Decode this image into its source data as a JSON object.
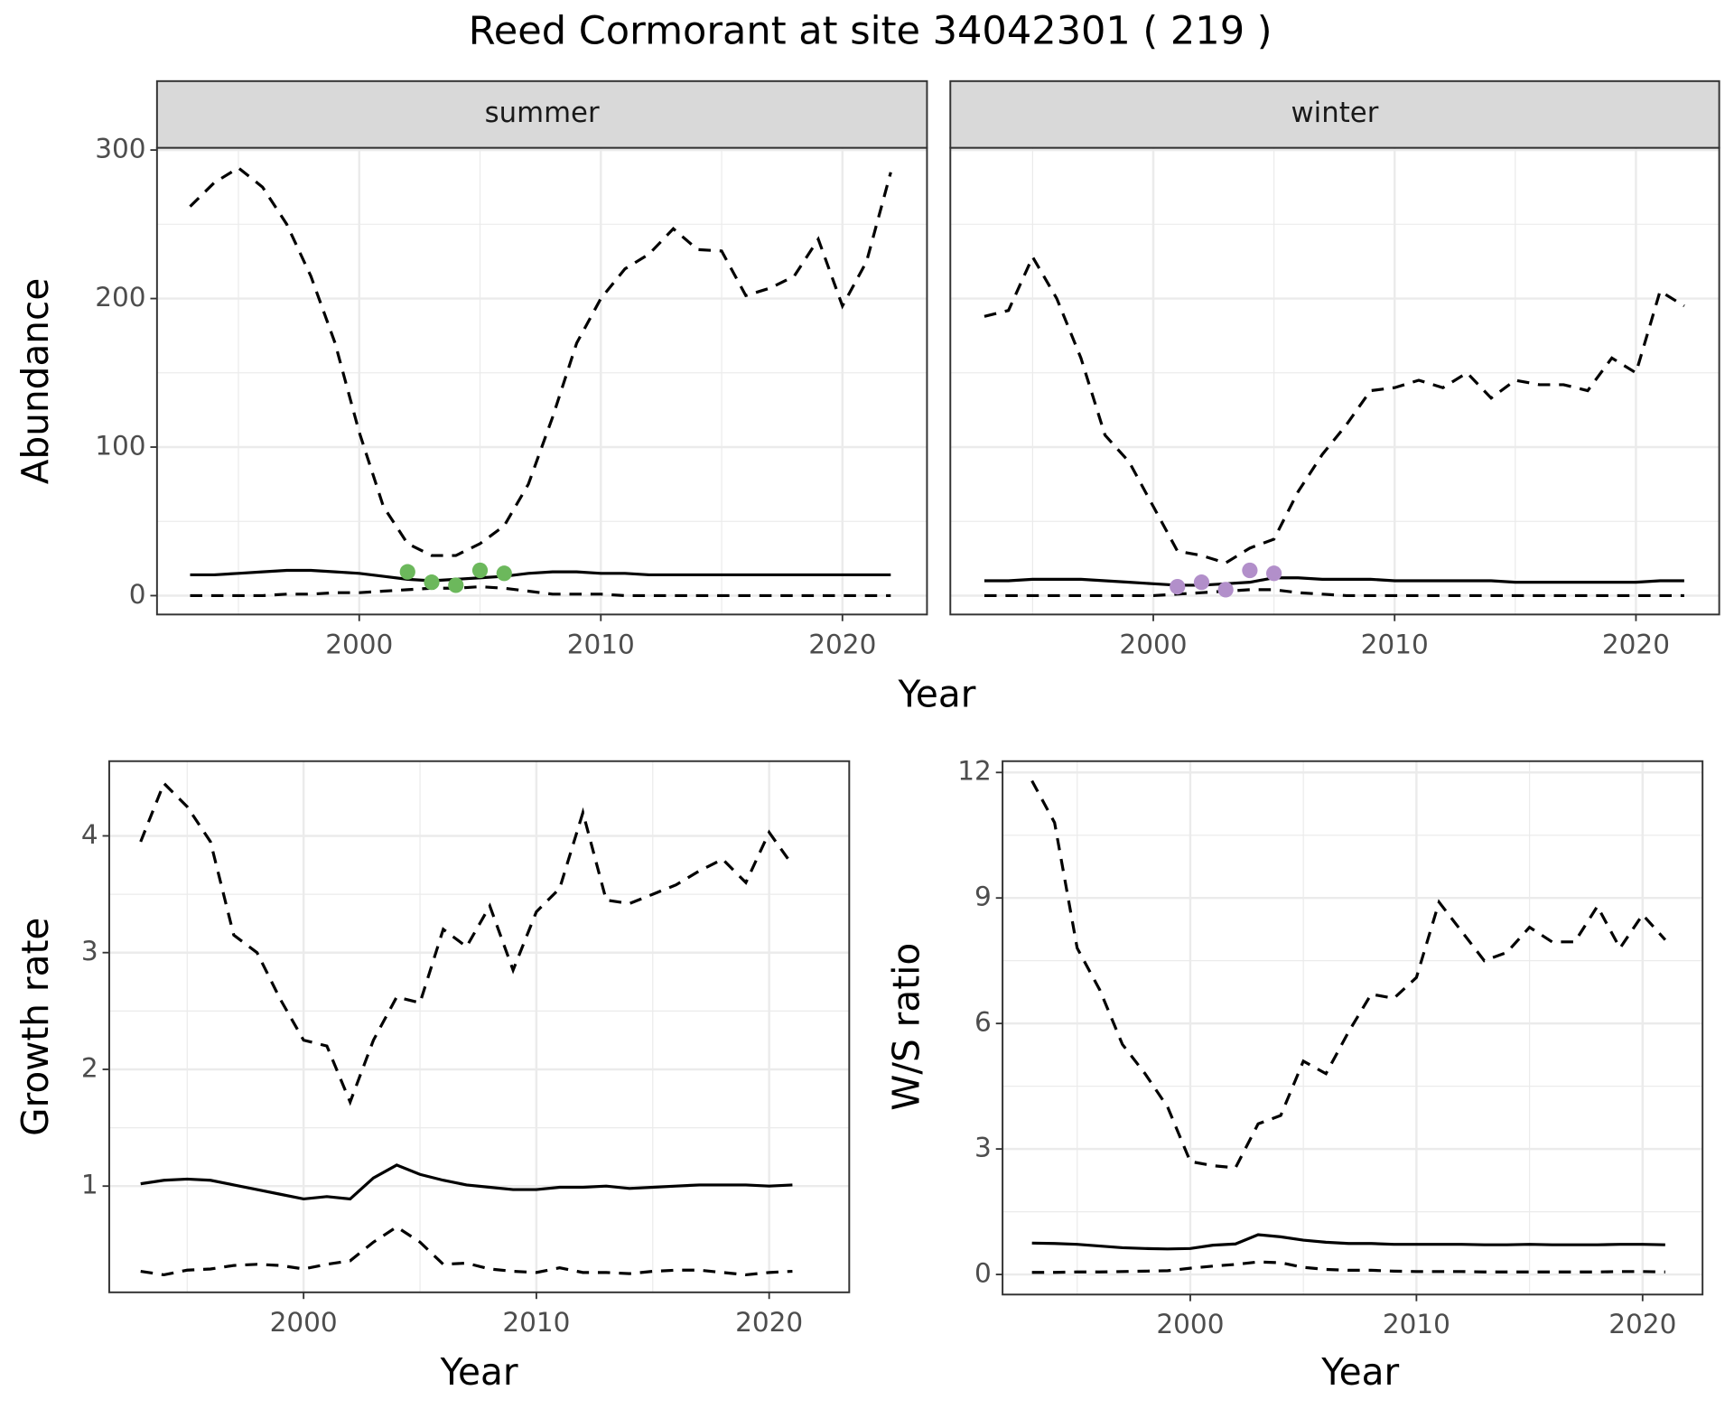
{
  "title": "Reed Cormorant at site 34042301 ( 219 )",
  "chart_data": [
    {
      "type": "line",
      "facet": "summer",
      "ylabel": "Abundance",
      "xlabel": "Year",
      "x": [
        1993,
        1994,
        1995,
        1996,
        1997,
        1998,
        1999,
        2000,
        2001,
        2002,
        2003,
        2004,
        2005,
        2006,
        2007,
        2008,
        2009,
        2010,
        2011,
        2012,
        2013,
        2014,
        2015,
        2016,
        2017,
        2018,
        2019,
        2020,
        2021,
        2022
      ],
      "series": [
        {
          "color": "#000000",
          "dash": true,
          "values": [
            262,
            278,
            288,
            275,
            250,
            215,
            170,
            110,
            60,
            35,
            27,
            27,
            35,
            47,
            75,
            120,
            170,
            200,
            220,
            230,
            247,
            233,
            232,
            202,
            207,
            215,
            240,
            195,
            225,
            285
          ]
        },
        {
          "color": "#000000",
          "dash": false,
          "values": [
            14,
            14,
            15,
            16,
            17,
            17,
            16,
            15,
            13,
            11,
            10,
            11,
            12,
            13,
            15,
            16,
            16,
            15,
            15,
            14,
            14,
            14,
            14,
            14,
            14,
            14,
            14,
            14,
            14,
            14
          ]
        },
        {
          "color": "#000000",
          "dash": true,
          "values": [
            0,
            0,
            0,
            0,
            1,
            1,
            2,
            2,
            3,
            4,
            5,
            5,
            6,
            5,
            3,
            1,
            1,
            1,
            0,
            0,
            0,
            0,
            0,
            0,
            0,
            0,
            0,
            0,
            0,
            0
          ]
        }
      ],
      "points": {
        "color": "#6cb85c",
        "x": [
          2002,
          2003,
          2004,
          2005,
          2006
        ],
        "values": [
          16,
          9,
          7,
          17,
          15
        ]
      },
      "xlim": [
        1991.63,
        2023.5
      ],
      "ylim": [
        -12.7,
        301.5
      ],
      "xticks": [
        2000,
        2010,
        2020
      ],
      "yticks": [
        0,
        100,
        200,
        300
      ],
      "grid": true,
      "ytick_labels": true
    },
    {
      "type": "line",
      "facet": "winter",
      "x": [
        1993,
        1994,
        1995,
        1996,
        1997,
        1998,
        1999,
        2000,
        2001,
        2002,
        2003,
        2004,
        2005,
        2006,
        2007,
        2008,
        2009,
        2010,
        2011,
        2012,
        2013,
        2014,
        2015,
        2016,
        2017,
        2018,
        2019,
        2020,
        2021,
        2022
      ],
      "series": [
        {
          "color": "#000000",
          "dash": true,
          "values": [
            188,
            192,
            228,
            200,
            160,
            108,
            90,
            60,
            30,
            27,
            22,
            32,
            38,
            70,
            95,
            115,
            138,
            140,
            145,
            140,
            150,
            133,
            145,
            142,
            142,
            138,
            160,
            150,
            205,
            195
          ]
        },
        {
          "color": "#000000",
          "dash": false,
          "values": [
            10,
            10,
            11,
            11,
            11,
            10,
            9,
            8,
            7,
            7,
            8,
            9,
            12,
            12,
            11,
            11,
            11,
            10,
            10,
            10,
            10,
            10,
            9,
            9,
            9,
            9,
            9,
            9,
            10,
            10
          ]
        },
        {
          "color": "#000000",
          "dash": true,
          "values": [
            0,
            0,
            0,
            0,
            0,
            0,
            0,
            0,
            1,
            2,
            3,
            4,
            4,
            2,
            1,
            0,
            0,
            0,
            0,
            0,
            0,
            0,
            0,
            0,
            0,
            0,
            0,
            0,
            0,
            0
          ]
        }
      ],
      "points": {
        "color": "#b28fca",
        "x": [
          2001,
          2002,
          2003,
          2004,
          2005
        ],
        "values": [
          6,
          9,
          4,
          17,
          15
        ]
      },
      "xlim": [
        1991.59,
        2023.45
      ],
      "ylim": [
        -12.7,
        301.5
      ],
      "xticks": [
        2000,
        2010,
        2020
      ],
      "yticks": [
        0,
        100,
        200,
        300
      ],
      "grid": true,
      "ytick_labels": false
    },
    {
      "type": "line",
      "ylabel": "Growth rate",
      "xlabel": "Year",
      "x": [
        1993,
        1994,
        1995,
        1996,
        1997,
        1998,
        1999,
        2000,
        2001,
        2002,
        2003,
        2004,
        2005,
        2006,
        2007,
        2008,
        2009,
        2010,
        2011,
        2012,
        2013,
        2014,
        2015,
        2016,
        2017,
        2018,
        2019,
        2020,
        2021
      ],
      "series": [
        {
          "color": "#000000",
          "dash": true,
          "values": [
            3.95,
            4.45,
            4.25,
            3.95,
            3.15,
            3.0,
            2.6,
            2.25,
            2.2,
            1.72,
            2.25,
            2.62,
            2.57,
            3.2,
            3.05,
            3.4,
            2.85,
            3.35,
            3.55,
            4.2,
            3.45,
            3.42,
            3.5,
            3.58,
            3.7,
            3.8,
            3.6,
            4.03,
            3.75
          ]
        },
        {
          "color": "#000000",
          "dash": false,
          "values": [
            1.02,
            1.05,
            1.06,
            1.05,
            1.01,
            0.97,
            0.93,
            0.89,
            0.91,
            0.89,
            1.07,
            1.18,
            1.1,
            1.05,
            1.01,
            0.99,
            0.97,
            0.97,
            0.99,
            0.99,
            1.0,
            0.98,
            0.99,
            1.0,
            1.01,
            1.01,
            1.01,
            1.0,
            1.01
          ]
        },
        {
          "color": "#000000",
          "dash": true,
          "values": [
            0.27,
            0.24,
            0.28,
            0.29,
            0.32,
            0.33,
            0.32,
            0.29,
            0.33,
            0.36,
            0.52,
            0.65,
            0.52,
            0.33,
            0.34,
            0.29,
            0.27,
            0.26,
            0.3,
            0.26,
            0.26,
            0.25,
            0.27,
            0.28,
            0.28,
            0.26,
            0.24,
            0.26,
            0.27
          ]
        }
      ],
      "xlim": [
        1991.65,
        2023.44
      ],
      "ylim": [
        0.09,
        4.64
      ],
      "xticks": [
        2000,
        2010,
        2020
      ],
      "yticks": [
        1,
        2,
        3,
        4
      ],
      "grid": true,
      "ytick_labels": true
    },
    {
      "type": "line",
      "ylabel": "W/S ratio",
      "xlabel": "Year",
      "x": [
        1993,
        1994,
        1995,
        1996,
        1997,
        1998,
        1999,
        2000,
        2001,
        2002,
        2003,
        2004,
        2005,
        2006,
        2007,
        2008,
        2009,
        2010,
        2011,
        2012,
        2013,
        2014,
        2015,
        2016,
        2017,
        2018,
        2019,
        2020,
        2021
      ],
      "series": [
        {
          "color": "#000000",
          "dash": true,
          "values": [
            11.8,
            10.8,
            7.8,
            6.8,
            5.5,
            4.8,
            4.0,
            2.7,
            2.6,
            2.55,
            3.6,
            3.8,
            5.1,
            4.8,
            5.8,
            6.7,
            6.6,
            7.1,
            8.9,
            8.2,
            7.5,
            7.7,
            8.3,
            7.95,
            7.95,
            8.8,
            7.8,
            8.6,
            8.0
          ]
        },
        {
          "color": "#000000",
          "dash": false,
          "values": [
            0.75,
            0.74,
            0.72,
            0.68,
            0.64,
            0.62,
            0.61,
            0.62,
            0.7,
            0.73,
            0.95,
            0.9,
            0.82,
            0.77,
            0.74,
            0.74,
            0.72,
            0.72,
            0.72,
            0.72,
            0.71,
            0.71,
            0.72,
            0.71,
            0.71,
            0.71,
            0.72,
            0.72,
            0.71
          ]
        },
        {
          "color": "#000000",
          "dash": true,
          "values": [
            0.05,
            0.05,
            0.06,
            0.06,
            0.07,
            0.08,
            0.09,
            0.15,
            0.2,
            0.24,
            0.3,
            0.28,
            0.17,
            0.12,
            0.1,
            0.1,
            0.08,
            0.07,
            0.07,
            0.07,
            0.06,
            0.06,
            0.06,
            0.06,
            0.06,
            0.06,
            0.07,
            0.07,
            0.06
          ]
        }
      ],
      "xlim": [
        1991.7,
        2022.65
      ],
      "ylim": [
        -0.48,
        12.27
      ],
      "xticks": [
        2000,
        2010,
        2020
      ],
      "yticks": [
        0,
        3,
        6,
        9,
        12
      ],
      "grid": true,
      "ytick_labels": true
    }
  ]
}
